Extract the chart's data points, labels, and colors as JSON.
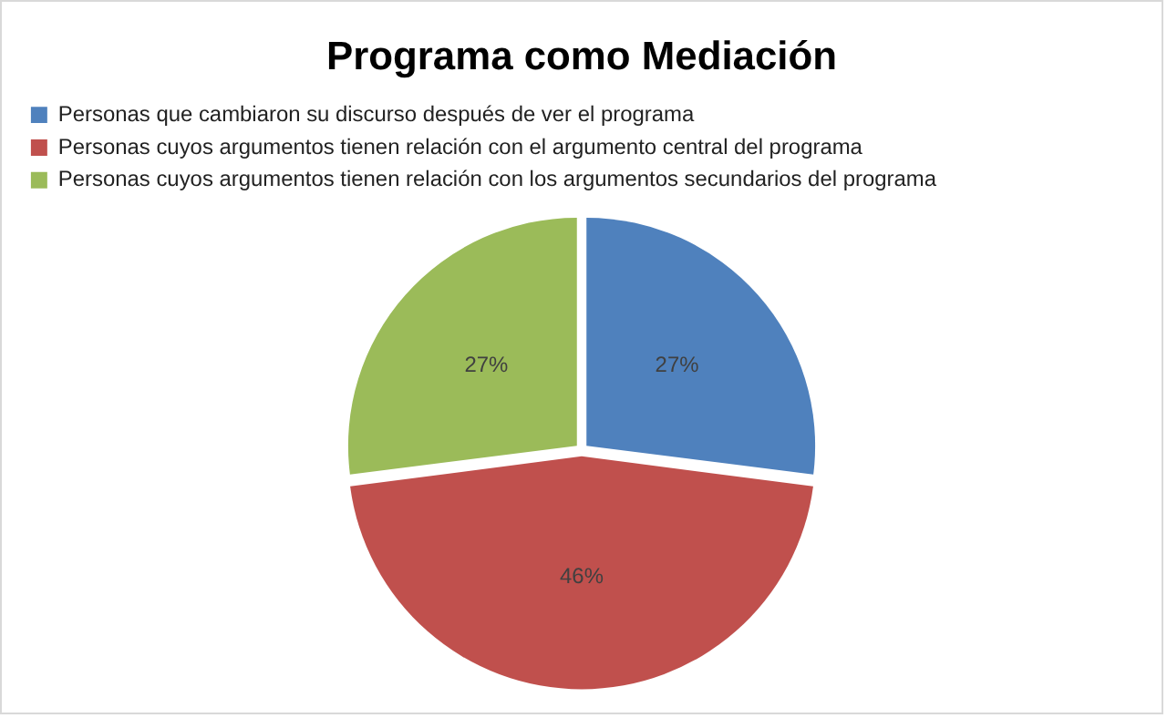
{
  "chart_data": {
    "type": "pie",
    "title": "Programa como Mediación",
    "categories": [
      "Personas que cambiaron su discurso después de ver el programa",
      "Personas cuyos argumentos tienen relación con el argumento central del programa",
      "Personas cuyos argumentos tienen relación con los argumentos secundarios del programa"
    ],
    "values": [
      27,
      46,
      27
    ],
    "colors": [
      "#4f81bd",
      "#c0504d",
      "#9bbb59"
    ],
    "value_labels": [
      "27%",
      "46%",
      "27%"
    ],
    "legend": "top left"
  }
}
